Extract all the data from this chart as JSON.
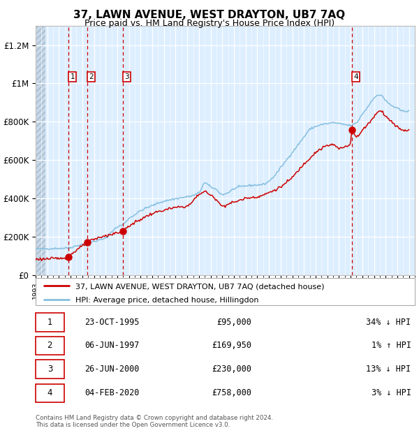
{
  "title": "37, LAWN AVENUE, WEST DRAYTON, UB7 7AQ",
  "subtitle": "Price paid vs. HM Land Registry's House Price Index (HPI)",
  "sale_dates_num": [
    1995.81,
    1997.43,
    2000.48,
    2020.09
  ],
  "sale_prices": [
    95000,
    169950,
    230000,
    758000
  ],
  "sale_labels": [
    "1",
    "2",
    "3",
    "4"
  ],
  "legend_red": "37, LAWN AVENUE, WEST DRAYTON, UB7 7AQ (detached house)",
  "legend_blue": "HPI: Average price, detached house, Hillingdon",
  "table_rows": [
    [
      "1",
      "23-OCT-1995",
      "£95,000",
      "34% ↓ HPI"
    ],
    [
      "2",
      "06-JUN-1997",
      "£169,950",
      "1% ↑ HPI"
    ],
    [
      "3",
      "26-JUN-2000",
      "£230,000",
      "13% ↓ HPI"
    ],
    [
      "4",
      "04-FEB-2020",
      "£758,000",
      "3% ↓ HPI"
    ]
  ],
  "footer": "Contains HM Land Registry data © Crown copyright and database right 2024.\nThis data is licensed under the Open Government Licence v3.0.",
  "hpi_color": "#85bfdf",
  "price_color": "#cc0000",
  "dashed_color": "#cc0000",
  "bg_plot": "#ddeeff",
  "ylim_max": 1300000,
  "xmin": 1993.0,
  "xmax": 2025.5
}
